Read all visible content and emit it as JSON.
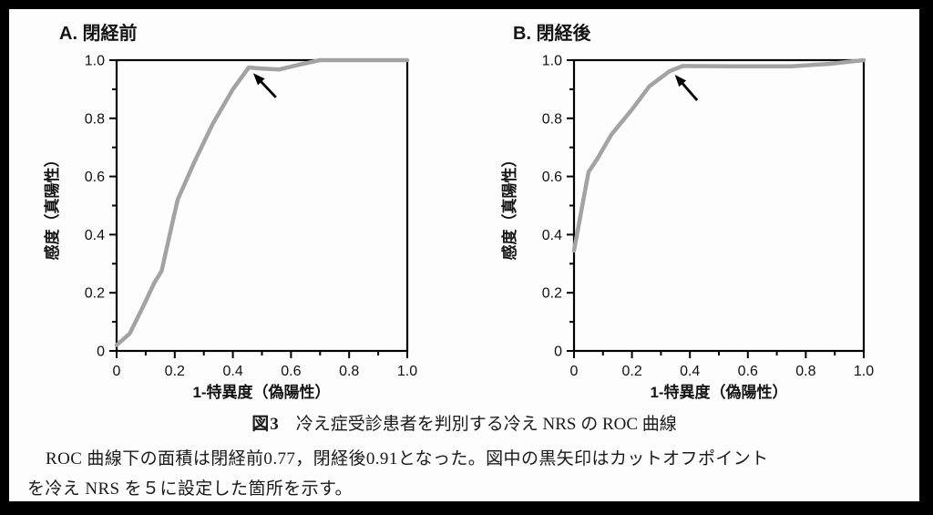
{
  "figure": {
    "caption_label": "図3",
    "caption_title": "冷え症受診患者を判別する冷え NRS の ROC 曲線",
    "note_line1": "ROC 曲線下の面積は閉経前0.77，閉経後0.91となった。図中の黒矢印はカットオフポイント",
    "note_line2": "を冷え NRS を５に設定した箇所を示す。"
  },
  "chart_data": {
    "type": "line",
    "subtype": "roc-curve",
    "curve_color": "#a3a3a3",
    "axis_color": "#000000",
    "arrow_color": "#000000",
    "xlim": [
      0,
      1
    ],
    "ylim": [
      0,
      1
    ],
    "grid": false,
    "axis_ticks": [
      {
        "v": 0,
        "label": "0"
      },
      {
        "v": 0.2,
        "label": "0.2"
      },
      {
        "v": 0.4,
        "label": "0.4"
      },
      {
        "v": 0.6,
        "label": "0.6"
      },
      {
        "v": 0.8,
        "label": "0.8"
      },
      {
        "v": 1,
        "label": "1.0"
      }
    ],
    "axis_minor_ticks": [
      0.1,
      0.3,
      0.5,
      0.7,
      0.9
    ],
    "panels": [
      {
        "id": "A",
        "title": "A. 閉経前",
        "xlabel": "1-特異度（偽陽性）",
        "ylabel": "感度（真陽性）",
        "auc": 0.77,
        "roc_points": [
          [
            0,
            0.02
          ],
          [
            0.045,
            0.06
          ],
          [
            0.09,
            0.15
          ],
          [
            0.13,
            0.235
          ],
          [
            0.155,
            0.275
          ],
          [
            0.185,
            0.41
          ],
          [
            0.21,
            0.52
          ],
          [
            0.27,
            0.655
          ],
          [
            0.33,
            0.78
          ],
          [
            0.4,
            0.9
          ],
          [
            0.455,
            0.975
          ],
          [
            0.5,
            0.971
          ],
          [
            0.56,
            0.968
          ],
          [
            0.63,
            0.985
          ],
          [
            0.7,
            1.0
          ],
          [
            1.0,
            1.0
          ]
        ],
        "cutoff_arrow": {
          "tip": [
            0.47,
            0.955
          ],
          "tail": [
            0.548,
            0.872
          ],
          "cutoff_nrs": 5
        }
      },
      {
        "id": "B",
        "title": "B. 閉経後",
        "xlabel": "1-特異度（偽陽性）",
        "ylabel": "感度（真陽性）",
        "auc": 0.91,
        "roc_points": [
          [
            0,
            0.345
          ],
          [
            0.05,
            0.615
          ],
          [
            0.08,
            0.66
          ],
          [
            0.13,
            0.745
          ],
          [
            0.2,
            0.83
          ],
          [
            0.26,
            0.91
          ],
          [
            0.33,
            0.962
          ],
          [
            0.375,
            0.98
          ],
          [
            0.55,
            0.979
          ],
          [
            0.75,
            0.979
          ],
          [
            0.88,
            0.987
          ],
          [
            1.0,
            1.0
          ]
        ],
        "cutoff_arrow": {
          "tip": [
            0.348,
            0.95
          ],
          "tail": [
            0.425,
            0.862
          ],
          "cutoff_nrs": 5
        }
      }
    ]
  }
}
